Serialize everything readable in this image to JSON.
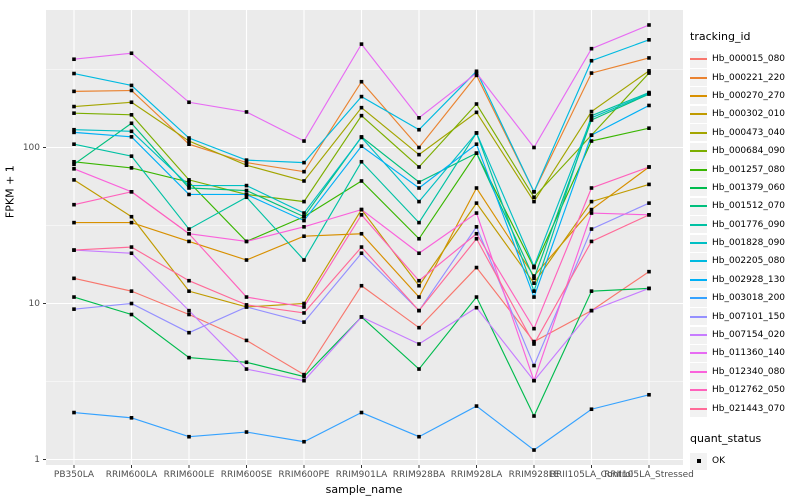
{
  "chart_data": {
    "type": "line",
    "title": "",
    "xlabel": "sample_name",
    "ylabel": "FPKM + 1",
    "y_scale": "log10",
    "y_ticks": [
      1,
      10,
      100
    ],
    "y_minor_ticks": [
      3.162,
      31.62,
      316.2
    ],
    "ylim": [
      0.92,
      760
    ],
    "grid": "on",
    "legend_position": "right",
    "legend_title": "tracking_id",
    "quant_legend": {
      "title": "quant_status",
      "items": [
        {
          "label": "OK",
          "marker": "black-square"
        }
      ]
    },
    "categories": [
      "PB350LA",
      "RRIM600LA",
      "RRIM600LE",
      "RRIM600SE",
      "RRIM600PE",
      "RRIM901LA",
      "RRIM928BA",
      "RRIM928LA",
      "RRIM928LE",
      "RRII105LA_Control",
      "RRII105LA_Stressed"
    ],
    "series": [
      {
        "name": "Hb_000015_080",
        "color": "#F8766D",
        "values": [
          14.5,
          12,
          8.5,
          5.8,
          3.5,
          13,
          7,
          17,
          5.7,
          9,
          16
        ]
      },
      {
        "name": "Hb_000221_220",
        "color": "#EA8331",
        "values": [
          229,
          232,
          105,
          80,
          70,
          264,
          100,
          290,
          52,
          300,
          375
        ]
      },
      {
        "name": "Hb_000270_270",
        "color": "#D89000",
        "values": [
          33,
          33,
          25,
          19,
          27,
          28,
          11,
          55,
          15,
          40,
          75
        ]
      },
      {
        "name": "Hb_000302_010",
        "color": "#C09B00",
        "values": [
          62,
          36,
          12,
          9.5,
          10,
          40,
          13,
          44,
          13.5,
          45,
          58
        ]
      },
      {
        "name": "Hb_000473_040",
        "color": "#A3A500",
        "values": [
          183,
          195,
          110,
          77,
          61,
          180,
          90,
          168,
          45,
          170,
          310
        ]
      },
      {
        "name": "Hb_000684_090",
        "color": "#7CAE00",
        "values": [
          166,
          162,
          62,
          50,
          45,
          160,
          75,
          190,
          48,
          120,
          300
        ]
      },
      {
        "name": "Hb_001257_080",
        "color": "#39B600",
        "values": [
          81,
          74,
          60,
          25,
          36,
          61,
          26,
          92,
          17,
          110,
          133
        ]
      },
      {
        "name": "Hb_001379_060",
        "color": "#00BB4E",
        "values": [
          11,
          8.5,
          4.5,
          4.2,
          3.4,
          8.2,
          3.8,
          11,
          1.9,
          12,
          12.5
        ]
      },
      {
        "name": "Hb_001512_070",
        "color": "#00BF7D",
        "values": [
          78,
          143,
          55,
          53,
          36,
          117,
          60,
          92,
          14.5,
          150,
          220
        ]
      },
      {
        "name": "Hb_001776_090",
        "color": "#00C1A3",
        "values": [
          105,
          88,
          30,
          48,
          19,
          81,
          33,
          124,
          12,
          160,
          225
        ]
      },
      {
        "name": "Hb_001828_090",
        "color": "#00BFC4",
        "values": [
          130,
          127,
          57,
          57,
          38,
          116,
          45,
          124,
          17.3,
          155,
          222
        ]
      },
      {
        "name": "Hb_002205_080",
        "color": "#00BAE0",
        "values": [
          298,
          250,
          115,
          83,
          80,
          212,
          130,
          308,
          52,
          360,
          490
        ]
      },
      {
        "name": "Hb_002928_130",
        "color": "#00B0F6",
        "values": [
          125,
          117,
          50,
          50,
          34,
          102,
          55,
          105,
          11,
          120,
          186
        ]
      },
      {
        "name": "Hb_003018_200",
        "color": "#35A2FF",
        "values": [
          2.0,
          1.85,
          1.4,
          1.5,
          1.3,
          2.0,
          1.4,
          2.2,
          1.15,
          2.1,
          2.6
        ]
      },
      {
        "name": "Hb_007101_150",
        "color": "#9590FF",
        "values": [
          9.2,
          10,
          6.5,
          9.5,
          7.6,
          21,
          9,
          31,
          4.0,
          30,
          44
        ]
      },
      {
        "name": "Hb_007154_020",
        "color": "#C77CFF",
        "values": [
          22,
          21,
          9,
          3.8,
          3.2,
          8.2,
          5.5,
          9.4,
          3.2,
          9,
          12.5
        ]
      },
      {
        "name": "Hb_011360_140",
        "color": "#E76BF3",
        "values": [
          368,
          402,
          195,
          169,
          110,
          460,
          155,
          300,
          100,
          430,
          610
        ]
      },
      {
        "name": "Hb_012340_080",
        "color": "#FA62DB",
        "values": [
          73,
          52,
          28,
          25,
          31,
          40,
          21,
          38,
          3.2,
          38,
          37
        ]
      },
      {
        "name": "Hb_012762_050",
        "color": "#FF62BC",
        "values": [
          43,
          52,
          28,
          11,
          9.5,
          37,
          14,
          28,
          6.9,
          55,
          75
        ]
      },
      {
        "name": "Hb_021443_070",
        "color": "#FF6A98",
        "values": [
          22,
          23,
          14,
          9.8,
          8.7,
          23,
          9,
          26,
          5.5,
          25,
          37
        ]
      }
    ]
  },
  "style": {
    "panel_bg": "#EBEBEB",
    "grid_color": "#FFFFFF",
    "point_color": "#000000",
    "tick_label_color": "#4D4D4D",
    "tick_mark_color": "#333333"
  }
}
